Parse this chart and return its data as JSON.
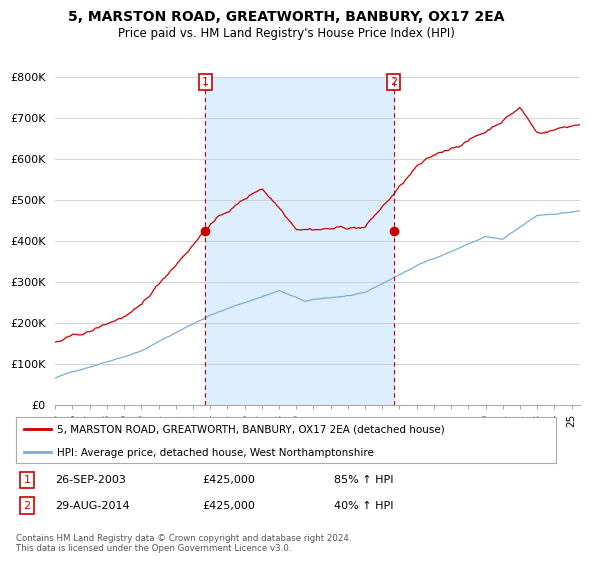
{
  "title": "5, MARSTON ROAD, GREATWORTH, BANBURY, OX17 2EA",
  "subtitle": "Price paid vs. HM Land Registry's House Price Index (HPI)",
  "ylim": [
    0,
    800000
  ],
  "yticks": [
    0,
    100000,
    200000,
    300000,
    400000,
    500000,
    600000,
    700000,
    800000
  ],
  "ytick_labels": [
    "£0",
    "£100K",
    "£200K",
    "£300K",
    "£400K",
    "£500K",
    "£600K",
    "£700K",
    "£800K"
  ],
  "xlim_start": 1995.0,
  "xlim_end": 2025.5,
  "xtick_years": [
    1995,
    1996,
    1997,
    1998,
    1999,
    2000,
    2001,
    2002,
    2003,
    2004,
    2005,
    2006,
    2007,
    2008,
    2009,
    2010,
    2011,
    2012,
    2013,
    2014,
    2015,
    2016,
    2017,
    2018,
    2019,
    2020,
    2021,
    2022,
    2023,
    2024,
    2025
  ],
  "red_line_color": "#cc0000",
  "blue_line_color": "#7aaddc",
  "shade_color": "#ddeeff",
  "dashed_red_color": "#cc0000",
  "transaction1_x": 2003.73,
  "transaction1_y": 425000,
  "transaction2_x": 2014.66,
  "transaction2_y": 425000,
  "legend_label_red": "5, MARSTON ROAD, GREATWORTH, BANBURY, OX17 2EA (detached house)",
  "legend_label_blue": "HPI: Average price, detached house, West Northamptonshire",
  "table_row1": [
    "1",
    "26-SEP-2003",
    "£425,000",
    "85% ↑ HPI"
  ],
  "table_row2": [
    "2",
    "29-AUG-2014",
    "£425,000",
    "40% ↑ HPI"
  ],
  "footer_text": "Contains HM Land Registry data © Crown copyright and database right 2024.\nThis data is licensed under the Open Government Licence v3.0.",
  "bg_color": "#ffffff",
  "grid_color": "#cccccc"
}
